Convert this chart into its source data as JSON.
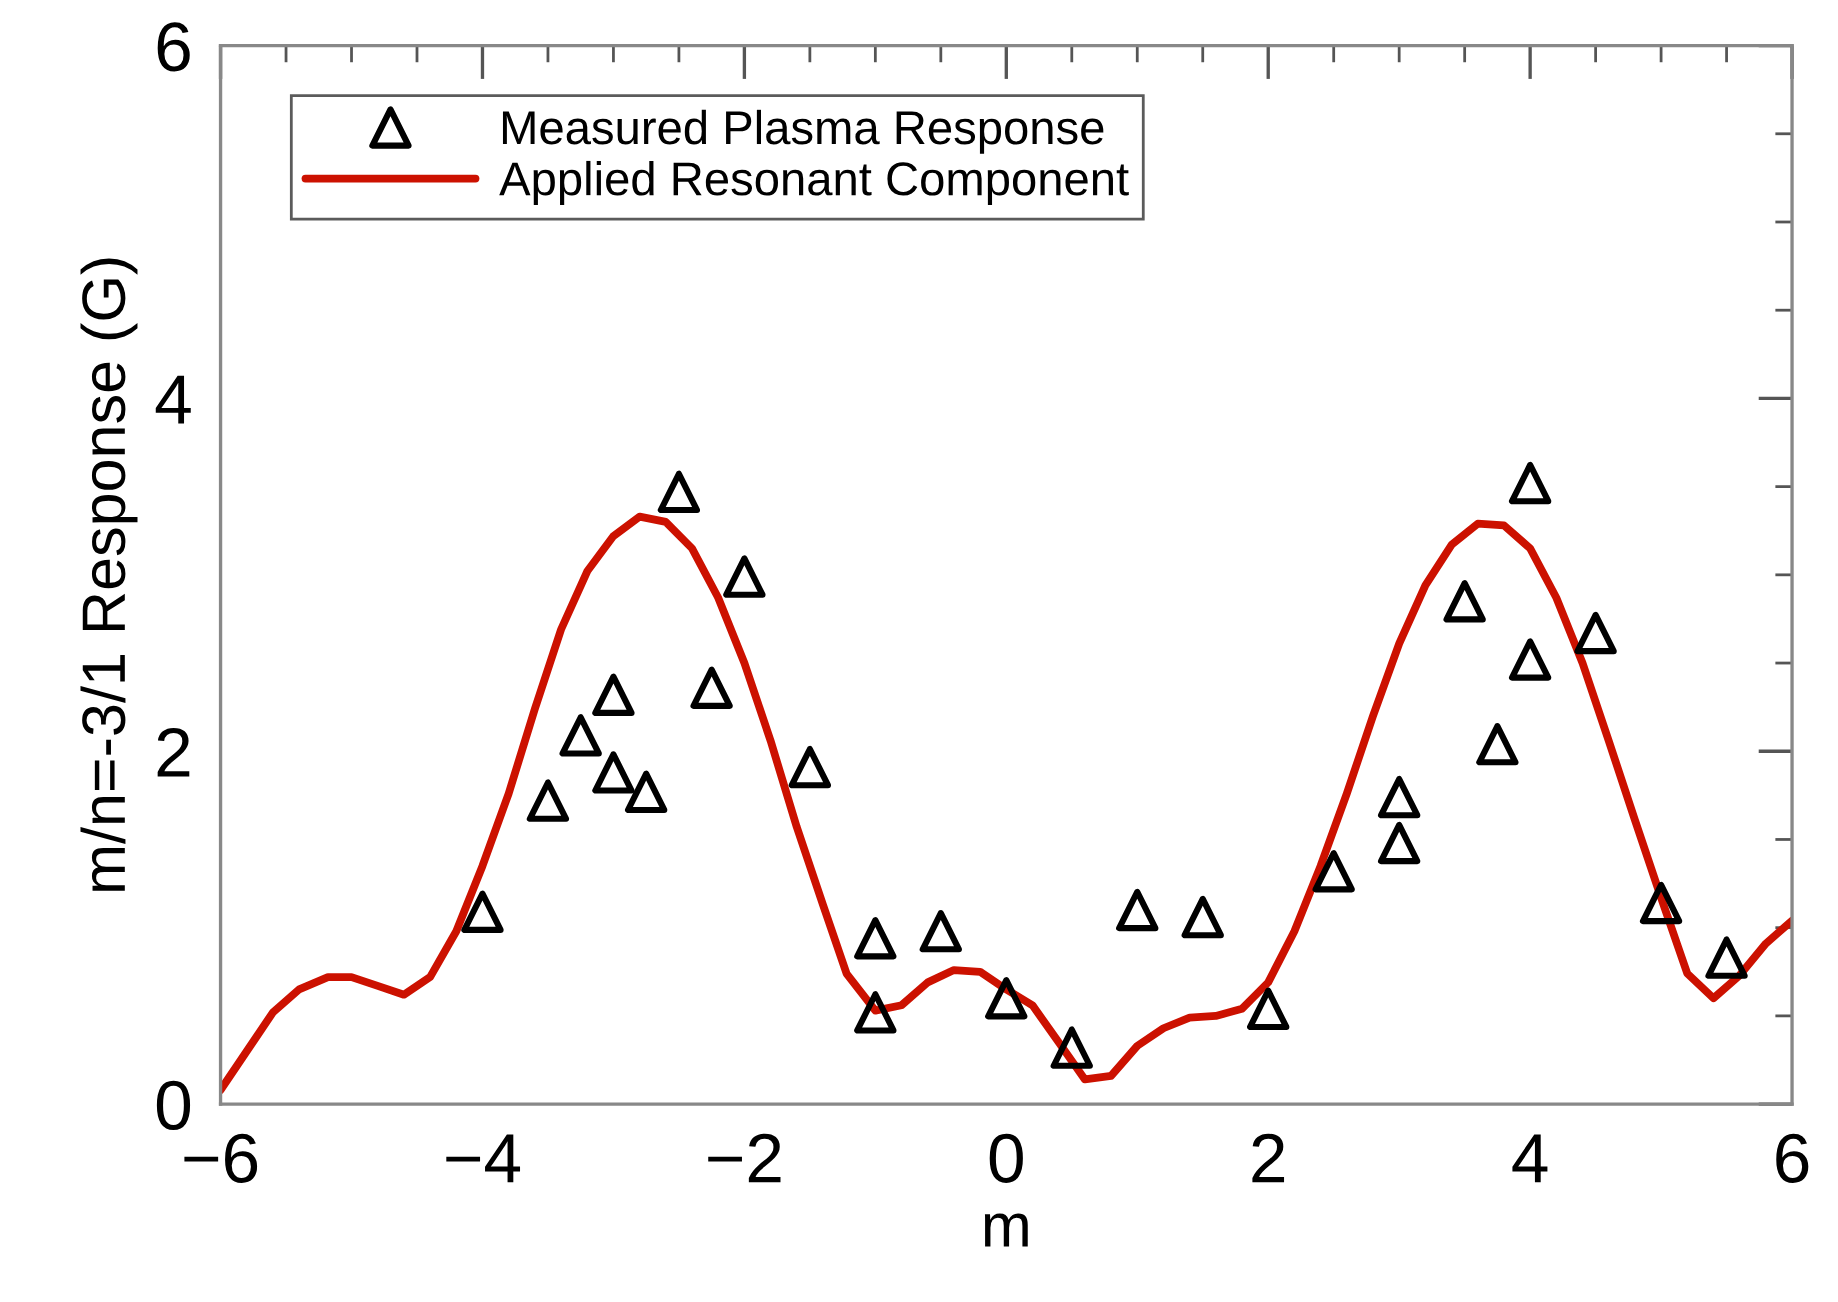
{
  "chart_data": {
    "type": "scatter",
    "xlabel": "m",
    "ylabel": "m/n=-3/1 Response (G)",
    "xlim": [
      -6,
      6
    ],
    "ylim": [
      0,
      6
    ],
    "xticks": [
      -6,
      {
        "value": -5.5,
        "label": null
      },
      {
        "value": -5,
        "label": null
      },
      {
        "value": -4.5,
        "label": null
      },
      -4,
      {
        "value": -3.5,
        "label": null
      },
      {
        "value": -3,
        "label": null
      },
      {
        "value": -2.5,
        "label": null
      },
      -2,
      {
        "value": -1.5,
        "label": null
      },
      {
        "value": -1,
        "label": null
      },
      {
        "value": -0.5,
        "label": null
      },
      0,
      {
        "value": 0.5,
        "label": null
      },
      {
        "value": 1,
        "label": null
      },
      {
        "value": 1.5,
        "label": null
      },
      2,
      {
        "value": 2.5,
        "label": null
      },
      {
        "value": 3,
        "label": null
      },
      {
        "value": 3.5,
        "label": null
      },
      4,
      {
        "value": 4.5,
        "label": null
      },
      {
        "value": 5,
        "label": null
      },
      {
        "value": 5.5,
        "label": null
      },
      6
    ],
    "yticks": [
      0,
      {
        "value": 0.5,
        "label": null
      },
      {
        "value": 1,
        "label": null
      },
      {
        "value": 1.5,
        "label": null
      },
      2,
      {
        "value": 2.5,
        "label": null
      },
      {
        "value": 3,
        "label": null
      },
      {
        "value": 3.5,
        "label": null
      },
      4,
      {
        "value": 4.5,
        "label": null
      },
      {
        "value": 5,
        "label": null
      },
      {
        "value": 5.5,
        "label": null
      },
      6
    ],
    "grid": false,
    "legend": "top left",
    "series": [
      {
        "name": "Measured Plasma Response",
        "marker": "triangle",
        "color": "#000000",
        "x": [
          -4,
          -3.5,
          -3.25,
          -3,
          -3,
          -2.75,
          -2.5,
          -2.25,
          -2,
          -1.5,
          -1,
          -1,
          -0.5,
          0,
          0.5,
          1,
          1.5,
          2,
          2.5,
          3,
          3,
          3.5,
          3.75,
          4,
          4,
          4.5,
          5,
          5.5
        ],
        "values": [
          1.09,
          1.72,
          2.09,
          2.32,
          1.88,
          1.77,
          3.47,
          2.36,
          2.99,
          1.91,
          0.94,
          0.52,
          0.98,
          0.6,
          0.32,
          1.1,
          1.06,
          0.54,
          1.32,
          1.74,
          1.48,
          2.85,
          2.04,
          2.52,
          3.52,
          2.67,
          1.14,
          0.83
        ]
      },
      {
        "name": "Applied Resonant Component",
        "type": "line",
        "marker": "none",
        "line_style": "solid",
        "color": "#cc1100",
        "x": [
          -6,
          -5.6,
          -5.4,
          -5.18,
          -5,
          -4.8,
          -4.6,
          -4.4,
          -4.2,
          -4,
          -3.8,
          -3.6,
          -3.4,
          -3.2,
          -3,
          -2.8,
          -2.6,
          -2.4,
          -2.2,
          -2,
          -1.8,
          -1.6,
          -1.4,
          -1.22,
          -1,
          -0.8,
          -0.6,
          -0.4,
          -0.2,
          0,
          0.2,
          0.4,
          0.6,
          0.8,
          1,
          1.2,
          1.4,
          1.6,
          1.8,
          2,
          2.2,
          2.4,
          2.6,
          2.8,
          3,
          3.2,
          3.4,
          3.6,
          3.8,
          4,
          4.2,
          4.4,
          4.6,
          4.8,
          5,
          5.2,
          5.4,
          5.6,
          5.8,
          6
        ],
        "values": [
          0.08,
          0.52,
          0.65,
          0.72,
          0.72,
          0.67,
          0.62,
          0.72,
          0.98,
          1.35,
          1.76,
          2.24,
          2.69,
          3.02,
          3.22,
          3.33,
          3.3,
          3.15,
          2.87,
          2.5,
          2.06,
          1.57,
          1.13,
          0.74,
          0.53,
          0.56,
          0.69,
          0.76,
          0.75,
          0.65,
          0.56,
          0.35,
          0.14,
          0.16,
          0.33,
          0.43,
          0.49,
          0.5,
          0.54,
          0.69,
          0.98,
          1.35,
          1.76,
          2.2,
          2.61,
          2.94,
          3.17,
          3.29,
          3.28,
          3.15,
          2.87,
          2.5,
          2.06,
          1.61,
          1.17,
          0.74,
          0.6,
          0.73,
          0.91,
          1.04
        ]
      }
    ]
  }
}
